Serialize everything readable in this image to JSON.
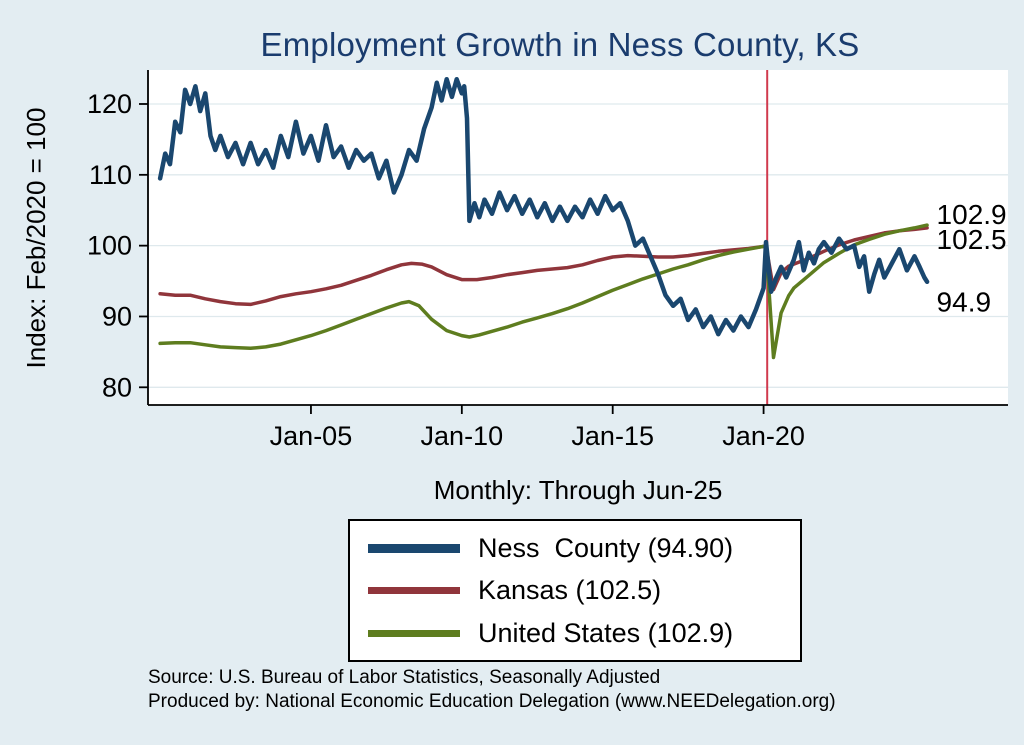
{
  "footer": {
    "line1": "Source: U.S. Bureau of Labor Statistics, Seasonally Adjusted",
    "line2": "Produced by: National Economic Education Delegation (www.NEEDelegation.org)"
  },
  "colors": {
    "background": "#e3edf2",
    "title": "#1a3c6e",
    "grid": "#dfe9ed",
    "axis": "#000000",
    "plot_background": "#ffffff",
    "vline": "#d03a4e"
  },
  "chart_data": {
    "type": "line",
    "title": "Employment Growth in Ness  County, KS",
    "subtitle": "",
    "xlabel": "Monthly: Through Jun-25",
    "ylabel": "Index: Feb/2020 = 100",
    "xlim": [
      1999.6,
      2028.1
    ],
    "ylim": [
      77.5,
      124.8
    ],
    "grid": true,
    "legend_position": "below",
    "y_ticks": [
      80,
      90,
      100,
      110,
      120
    ],
    "x_ticks": [
      {
        "x": 2005,
        "label": "Jan-05"
      },
      {
        "x": 2010,
        "label": "Jan-10"
      },
      {
        "x": 2015,
        "label": "Jan-15"
      },
      {
        "x": 2020,
        "label": "Jan-20"
      }
    ],
    "vline": {
      "x": 2020.12,
      "color": "#d03a4e",
      "meaning": "Feb-2020 reference line"
    },
    "series": [
      {
        "name": "Ness  County (94.90)",
        "color": "#1a476f",
        "width": 4.5,
        "end_label": "94.9",
        "label_x": 2025.6,
        "label_y": 92.0,
        "points": [
          [
            2000.0,
            109.5
          ],
          [
            2000.17,
            113
          ],
          [
            2000.33,
            111.5
          ],
          [
            2000.5,
            117.5
          ],
          [
            2000.67,
            116
          ],
          [
            2000.83,
            122
          ],
          [
            2001.0,
            120
          ],
          [
            2001.17,
            122.5
          ],
          [
            2001.33,
            119
          ],
          [
            2001.5,
            121.5
          ],
          [
            2001.67,
            115.5
          ],
          [
            2001.83,
            113.5
          ],
          [
            2002.0,
            115.5
          ],
          [
            2002.25,
            112.5
          ],
          [
            2002.5,
            114.5
          ],
          [
            2002.75,
            111.5
          ],
          [
            2003.0,
            114.5
          ],
          [
            2003.25,
            111.5
          ],
          [
            2003.5,
            113.5
          ],
          [
            2003.75,
            111
          ],
          [
            2004.0,
            115.5
          ],
          [
            2004.25,
            112.5
          ],
          [
            2004.5,
            117.5
          ],
          [
            2004.75,
            113
          ],
          [
            2005.0,
            115.5
          ],
          [
            2005.25,
            112
          ],
          [
            2005.5,
            117
          ],
          [
            2005.75,
            112.5
          ],
          [
            2006.0,
            114
          ],
          [
            2006.25,
            111
          ],
          [
            2006.5,
            113.5
          ],
          [
            2006.75,
            112
          ],
          [
            2007.0,
            113
          ],
          [
            2007.25,
            109.5
          ],
          [
            2007.5,
            112
          ],
          [
            2007.75,
            107.5
          ],
          [
            2008.0,
            110
          ],
          [
            2008.25,
            113.5
          ],
          [
            2008.5,
            112
          ],
          [
            2008.75,
            116.5
          ],
          [
            2009.0,
            119.5
          ],
          [
            2009.17,
            123
          ],
          [
            2009.33,
            120.5
          ],
          [
            2009.5,
            123.5
          ],
          [
            2009.67,
            121
          ],
          [
            2009.83,
            123.5
          ],
          [
            2010.0,
            121.5
          ],
          [
            2010.08,
            122.5
          ],
          [
            2010.17,
            118
          ],
          [
            2010.25,
            103.5
          ],
          [
            2010.42,
            106
          ],
          [
            2010.58,
            104
          ],
          [
            2010.75,
            106.5
          ],
          [
            2011.0,
            104.5
          ],
          [
            2011.25,
            107.5
          ],
          [
            2011.5,
            105
          ],
          [
            2011.75,
            107
          ],
          [
            2012.0,
            104.5
          ],
          [
            2012.25,
            106.5
          ],
          [
            2012.5,
            104
          ],
          [
            2012.75,
            106
          ],
          [
            2013.0,
            103.5
          ],
          [
            2013.25,
            105.5
          ],
          [
            2013.5,
            103.5
          ],
          [
            2013.75,
            105.5
          ],
          [
            2014.0,
            104
          ],
          [
            2014.25,
            106.5
          ],
          [
            2014.5,
            104.5
          ],
          [
            2014.75,
            107
          ],
          [
            2015.0,
            105
          ],
          [
            2015.25,
            106
          ],
          [
            2015.5,
            103.5
          ],
          [
            2015.75,
            100
          ],
          [
            2016.0,
            101
          ],
          [
            2016.25,
            98.5
          ],
          [
            2016.5,
            96
          ],
          [
            2016.75,
            93
          ],
          [
            2017.0,
            91.5
          ],
          [
            2017.25,
            92.5
          ],
          [
            2017.5,
            89.5
          ],
          [
            2017.75,
            91
          ],
          [
            2018.0,
            88.5
          ],
          [
            2018.25,
            90
          ],
          [
            2018.5,
            87.5
          ],
          [
            2018.75,
            89.5
          ],
          [
            2019.0,
            88
          ],
          [
            2019.25,
            90
          ],
          [
            2019.5,
            88.5
          ],
          [
            2019.75,
            91
          ],
          [
            2020.0,
            94
          ],
          [
            2020.08,
            100.5
          ],
          [
            2020.25,
            93.5
          ],
          [
            2020.42,
            95.5
          ],
          [
            2020.58,
            97
          ],
          [
            2020.75,
            95.5
          ],
          [
            2021.0,
            98
          ],
          [
            2021.17,
            100.5
          ],
          [
            2021.33,
            96.5
          ],
          [
            2021.5,
            99
          ],
          [
            2021.67,
            97.5
          ],
          [
            2021.83,
            99.5
          ],
          [
            2022.0,
            100.5
          ],
          [
            2022.25,
            99
          ],
          [
            2022.5,
            101
          ],
          [
            2022.75,
            99.5
          ],
          [
            2023.0,
            100
          ],
          [
            2023.17,
            97
          ],
          [
            2023.33,
            98.5
          ],
          [
            2023.5,
            93.5
          ],
          [
            2023.67,
            96
          ],
          [
            2023.83,
            98
          ],
          [
            2024.0,
            95.5
          ],
          [
            2024.25,
            97.5
          ],
          [
            2024.5,
            99.5
          ],
          [
            2024.75,
            96.5
          ],
          [
            2025.0,
            98.5
          ],
          [
            2025.17,
            97
          ],
          [
            2025.33,
            95.5
          ],
          [
            2025.42,
            94.9
          ]
        ]
      },
      {
        "name": "Kansas (102.5)",
        "color": "#90353b",
        "width": 3.5,
        "end_label": "102.5",
        "label_x": 2025.6,
        "label_y": 100.8,
        "points": [
          [
            2000.0,
            93.2
          ],
          [
            2000.5,
            93.0
          ],
          [
            2001.0,
            93.0
          ],
          [
            2001.5,
            92.5
          ],
          [
            2002.0,
            92.1
          ],
          [
            2002.5,
            91.8
          ],
          [
            2003.0,
            91.7
          ],
          [
            2003.5,
            92.2
          ],
          [
            2004.0,
            92.8
          ],
          [
            2004.5,
            93.2
          ],
          [
            2005.0,
            93.5
          ],
          [
            2005.5,
            93.9
          ],
          [
            2006.0,
            94.4
          ],
          [
            2006.5,
            95.1
          ],
          [
            2007.0,
            95.8
          ],
          [
            2007.5,
            96.6
          ],
          [
            2008.0,
            97.3
          ],
          [
            2008.33,
            97.5
          ],
          [
            2008.67,
            97.4
          ],
          [
            2009.0,
            97.0
          ],
          [
            2009.5,
            95.9
          ],
          [
            2010.0,
            95.2
          ],
          [
            2010.5,
            95.2
          ],
          [
            2011.0,
            95.5
          ],
          [
            2011.5,
            95.9
          ],
          [
            2012.0,
            96.2
          ],
          [
            2012.5,
            96.5
          ],
          [
            2013.0,
            96.7
          ],
          [
            2013.5,
            96.9
          ],
          [
            2014.0,
            97.3
          ],
          [
            2014.5,
            97.9
          ],
          [
            2015.0,
            98.4
          ],
          [
            2015.5,
            98.6
          ],
          [
            2016.0,
            98.5
          ],
          [
            2016.5,
            98.4
          ],
          [
            2017.0,
            98.4
          ],
          [
            2017.5,
            98.6
          ],
          [
            2018.0,
            98.9
          ],
          [
            2018.5,
            99.2
          ],
          [
            2019.0,
            99.4
          ],
          [
            2019.5,
            99.6
          ],
          [
            2020.0,
            99.9
          ],
          [
            2020.08,
            100.0
          ],
          [
            2020.33,
            93.8
          ],
          [
            2020.58,
            96.2
          ],
          [
            2020.83,
            97.1
          ],
          [
            2021.0,
            97.4
          ],
          [
            2021.5,
            98.2
          ],
          [
            2022.0,
            99.2
          ],
          [
            2022.5,
            100.1
          ],
          [
            2023.0,
            100.8
          ],
          [
            2023.5,
            101.3
          ],
          [
            2024.0,
            101.8
          ],
          [
            2024.5,
            102.1
          ],
          [
            2025.0,
            102.3
          ],
          [
            2025.42,
            102.5
          ]
        ]
      },
      {
        "name": "United States (102.9)",
        "color": "#5e7d1f",
        "width": 3.5,
        "end_label": "102.9",
        "label_x": 2025.6,
        "label_y": 104.3,
        "points": [
          [
            2000.0,
            86.2
          ],
          [
            2000.5,
            86.3
          ],
          [
            2001.0,
            86.3
          ],
          [
            2001.5,
            86.0
          ],
          [
            2002.0,
            85.7
          ],
          [
            2002.5,
            85.6
          ],
          [
            2003.0,
            85.5
          ],
          [
            2003.5,
            85.7
          ],
          [
            2004.0,
            86.1
          ],
          [
            2004.5,
            86.7
          ],
          [
            2005.0,
            87.3
          ],
          [
            2005.5,
            88.0
          ],
          [
            2006.0,
            88.8
          ],
          [
            2006.5,
            89.6
          ],
          [
            2007.0,
            90.4
          ],
          [
            2007.5,
            91.2
          ],
          [
            2008.0,
            91.9
          ],
          [
            2008.25,
            92.1
          ],
          [
            2008.58,
            91.5
          ],
          [
            2009.0,
            89.6
          ],
          [
            2009.5,
            88.0
          ],
          [
            2010.0,
            87.3
          ],
          [
            2010.25,
            87.1
          ],
          [
            2010.58,
            87.4
          ],
          [
            2011.0,
            87.9
          ],
          [
            2011.5,
            88.5
          ],
          [
            2012.0,
            89.2
          ],
          [
            2012.5,
            89.8
          ],
          [
            2013.0,
            90.4
          ],
          [
            2013.5,
            91.1
          ],
          [
            2014.0,
            91.9
          ],
          [
            2014.5,
            92.8
          ],
          [
            2015.0,
            93.7
          ],
          [
            2015.5,
            94.5
          ],
          [
            2016.0,
            95.3
          ],
          [
            2016.5,
            96.0
          ],
          [
            2017.0,
            96.7
          ],
          [
            2017.5,
            97.3
          ],
          [
            2018.0,
            98.0
          ],
          [
            2018.5,
            98.6
          ],
          [
            2019.0,
            99.1
          ],
          [
            2019.5,
            99.5
          ],
          [
            2020.0,
            99.9
          ],
          [
            2020.08,
            100.0
          ],
          [
            2020.33,
            84.2
          ],
          [
            2020.58,
            90.5
          ],
          [
            2020.83,
            92.9
          ],
          [
            2021.0,
            94.0
          ],
          [
            2021.5,
            95.8
          ],
          [
            2022.0,
            97.6
          ],
          [
            2022.5,
            98.9
          ],
          [
            2023.0,
            100.1
          ],
          [
            2023.5,
            100.9
          ],
          [
            2024.0,
            101.6
          ],
          [
            2024.5,
            102.1
          ],
          [
            2025.0,
            102.5
          ],
          [
            2025.42,
            102.9
          ]
        ]
      }
    ]
  }
}
